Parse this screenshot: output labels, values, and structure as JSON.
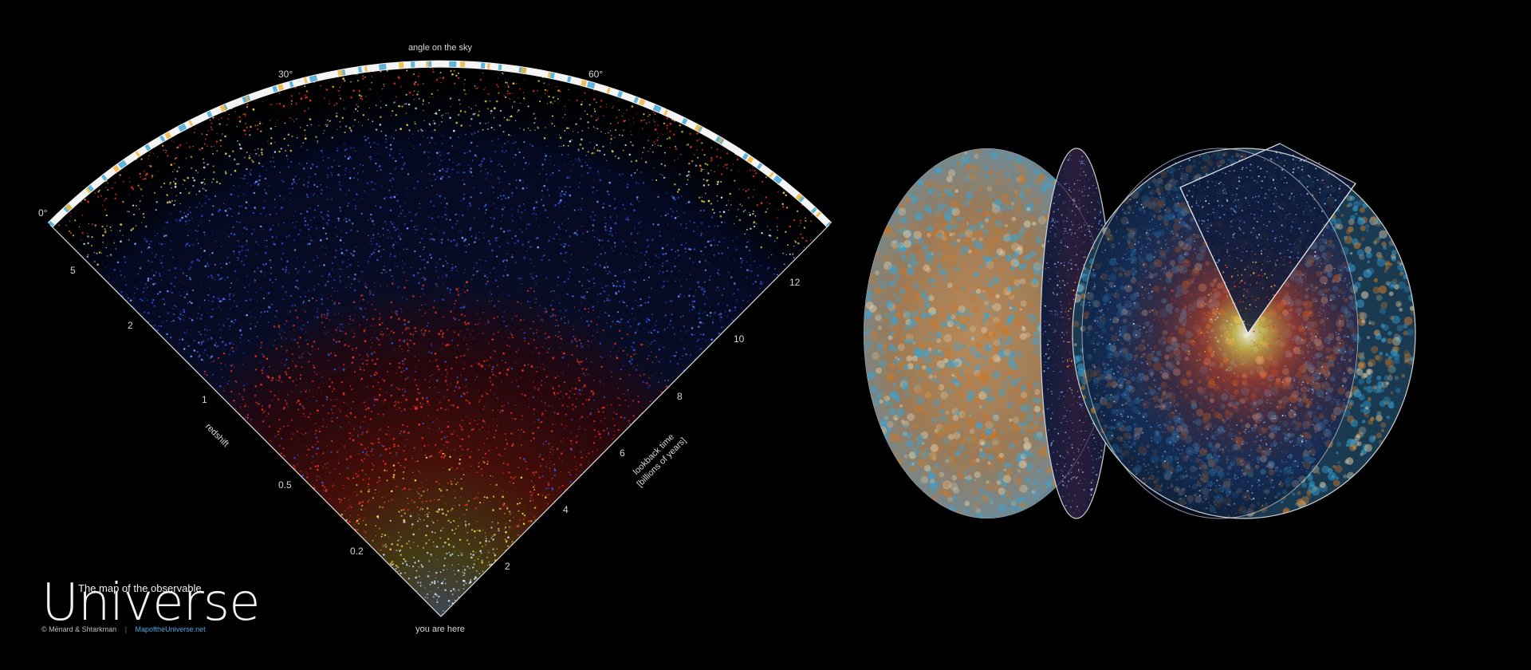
{
  "diagram": {
    "top_label": "angle on the sky",
    "angle_ticks": [
      "0°",
      "30°",
      "60°"
    ],
    "redshift_label": "redshift",
    "redshift_ticks": [
      "5",
      "2",
      "1",
      "0.5",
      "0.2"
    ],
    "lookback_label_line1": "lookback time",
    "lookback_label_line2": "[billions of years]",
    "lookback_ticks": [
      "2",
      "4",
      "6",
      "8",
      "10",
      "12"
    ],
    "observer_label": "you are here"
  },
  "logo": {
    "title_small": "The map of the observable",
    "title_big": "Universe",
    "credit": "© Ménard & Shtarkman",
    "separator": "|",
    "website": "MapoftheUniverse.net"
  },
  "colors": {
    "background": "#000000",
    "near_white": "#cfe6ff",
    "yellow": "#f1d24a",
    "red": "#e8321e",
    "blue": "#2a4fd8",
    "cmb_orange": "#c9782a",
    "cmb_blue": "#3aa4d6",
    "link_blue": "#4aa8e6"
  }
}
